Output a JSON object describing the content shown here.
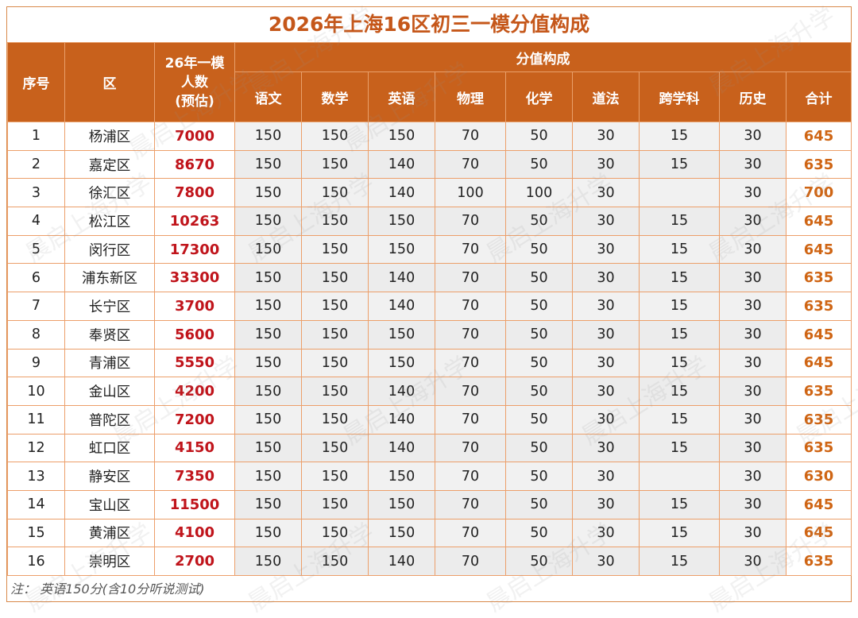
{
  "title": "2026年上海16区初三一模分值构成",
  "headers": {
    "index": "序号",
    "district": "区",
    "count_line1": "26年一模",
    "count_line2": "人数",
    "count_line3": "(预估)",
    "group": "分值构成",
    "subjects": [
      "语文",
      "数学",
      "英语",
      "物理",
      "化学",
      "道法",
      "跨学科",
      "历史",
      "合计"
    ]
  },
  "rows": [
    {
      "idx": "1",
      "district": "杨浦区",
      "count": "7000",
      "scores": [
        "150",
        "150",
        "150",
        "70",
        "50",
        "30",
        "15",
        "30"
      ],
      "total": "645"
    },
    {
      "idx": "2",
      "district": "嘉定区",
      "count": "8670",
      "scores": [
        "150",
        "150",
        "140",
        "70",
        "50",
        "30",
        "15",
        "30"
      ],
      "total": "635"
    },
    {
      "idx": "3",
      "district": "徐汇区",
      "count": "7800",
      "scores": [
        "150",
        "150",
        "140",
        "100",
        "100",
        "30",
        "",
        "30"
      ],
      "total": "700"
    },
    {
      "idx": "4",
      "district": "松江区",
      "count": "10263",
      "scores": [
        "150",
        "150",
        "150",
        "70",
        "50",
        "30",
        "15",
        "30"
      ],
      "total": "645"
    },
    {
      "idx": "5",
      "district": "闵行区",
      "count": "17300",
      "scores": [
        "150",
        "150",
        "150",
        "70",
        "50",
        "30",
        "15",
        "30"
      ],
      "total": "645"
    },
    {
      "idx": "6",
      "district": "浦东新区",
      "count": "33300",
      "scores": [
        "150",
        "150",
        "140",
        "70",
        "50",
        "30",
        "15",
        "30"
      ],
      "total": "635"
    },
    {
      "idx": "7",
      "district": "长宁区",
      "count": "3700",
      "scores": [
        "150",
        "150",
        "140",
        "70",
        "50",
        "30",
        "15",
        "30"
      ],
      "total": "635"
    },
    {
      "idx": "8",
      "district": "奉贤区",
      "count": "5600",
      "scores": [
        "150",
        "150",
        "150",
        "70",
        "50",
        "30",
        "15",
        "30"
      ],
      "total": "645"
    },
    {
      "idx": "9",
      "district": "青浦区",
      "count": "5550",
      "scores": [
        "150",
        "150",
        "150",
        "70",
        "50",
        "30",
        "15",
        "30"
      ],
      "total": "645"
    },
    {
      "idx": "10",
      "district": "金山区",
      "count": "4200",
      "scores": [
        "150",
        "150",
        "140",
        "70",
        "50",
        "30",
        "15",
        "30"
      ],
      "total": "635"
    },
    {
      "idx": "11",
      "district": "普陀区",
      "count": "7200",
      "scores": [
        "150",
        "150",
        "140",
        "70",
        "50",
        "30",
        "15",
        "30"
      ],
      "total": "635"
    },
    {
      "idx": "12",
      "district": "虹口区",
      "count": "4150",
      "scores": [
        "150",
        "150",
        "140",
        "70",
        "50",
        "30",
        "15",
        "30"
      ],
      "total": "635"
    },
    {
      "idx": "13",
      "district": "静安区",
      "count": "7350",
      "scores": [
        "150",
        "150",
        "150",
        "70",
        "50",
        "30",
        "",
        "30"
      ],
      "total": "630"
    },
    {
      "idx": "14",
      "district": "宝山区",
      "count": "11500",
      "scores": [
        "150",
        "150",
        "150",
        "70",
        "50",
        "30",
        "15",
        "30"
      ],
      "total": "645"
    },
    {
      "idx": "15",
      "district": "黄浦区",
      "count": "4100",
      "scores": [
        "150",
        "150",
        "150",
        "70",
        "50",
        "30",
        "15",
        "30"
      ],
      "total": "645"
    },
    {
      "idx": "16",
      "district": "崇明区",
      "count": "2700",
      "scores": [
        "150",
        "150",
        "140",
        "70",
        "50",
        "30",
        "15",
        "30"
      ],
      "total": "635"
    }
  ],
  "note": "注： 英语150分(含10分听说测试)",
  "watermark": "晨启上海升学",
  "colors": {
    "header_bg": "#c8611c",
    "title": "#c5571a",
    "count": "#c0141b",
    "total": "#cf6514",
    "border": "#ec9f6a"
  }
}
